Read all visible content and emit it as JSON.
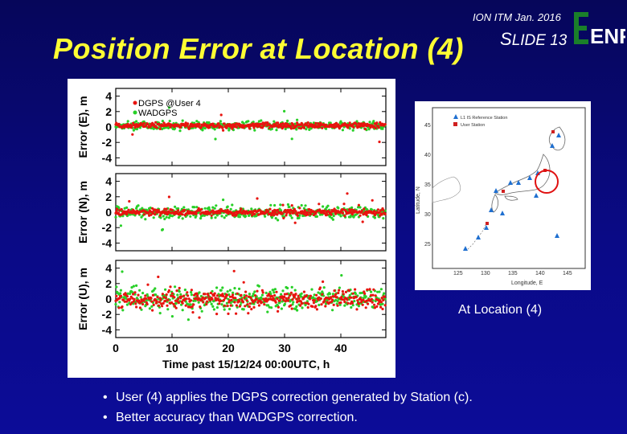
{
  "header": {
    "conference": "ION ITM Jan. 2016",
    "slide_prefix_big": "S",
    "slide_prefix_rest": "LIDE",
    "slide_number": "13",
    "logo_text": "ENRI",
    "title": "Position Error at Location (4)"
  },
  "chart_data": {
    "type": "scatter",
    "xlabel": "Time past 15/12/24 00:00UTC, h",
    "x_ticks": [
      "0",
      "10",
      "20",
      "30",
      "40"
    ],
    "xlim": [
      0,
      48
    ],
    "legend": [
      "DGPS @User 4",
      "WADGPS"
    ],
    "legend_placement": "top-left",
    "series_colors": {
      "dgps": "#e8140f",
      "wadgps": "#28d028"
    },
    "panels": [
      {
        "ylabel": "Error (E), m",
        "y_ticks": [
          "4",
          "2",
          "0",
          "-2",
          "-4"
        ],
        "ylim": [
          -5,
          5
        ],
        "dgps_spread": 0.3,
        "wadgps_spread": 0.45,
        "center": 0.2
      },
      {
        "ylabel": "Error (N), m",
        "y_ticks": [
          "4",
          "2",
          "0",
          "-2",
          "-4"
        ],
        "ylim": [
          -5,
          5
        ],
        "dgps_spread": 0.35,
        "wadgps_spread": 0.7,
        "center": 0.0
      },
      {
        "ylabel": "Error (U), m",
        "y_ticks": [
          "4",
          "2",
          "0",
          "-2",
          "-4"
        ],
        "ylim": [
          -5,
          5
        ],
        "dgps_spread": 1.0,
        "wadgps_spread": 1.3,
        "center": 0.0
      }
    ]
  },
  "map": {
    "legend_station": "L1 IS Reference Station",
    "legend_user": "User Station",
    "ylabel": "Latitude, N",
    "xlabel": "Longitude, E",
    "lat_ticks": [
      "45",
      "40",
      "35",
      "30",
      "25"
    ],
    "lon_ticks": [
      "125",
      "130",
      "135",
      "140",
      "145"
    ],
    "highlight_color": "#e01010"
  },
  "caption": "At Location (4)",
  "bullets": [
    "User (4) applies the DGPS correction generated by Station (c).",
    "Better accuracy than WADGPS correction."
  ]
}
